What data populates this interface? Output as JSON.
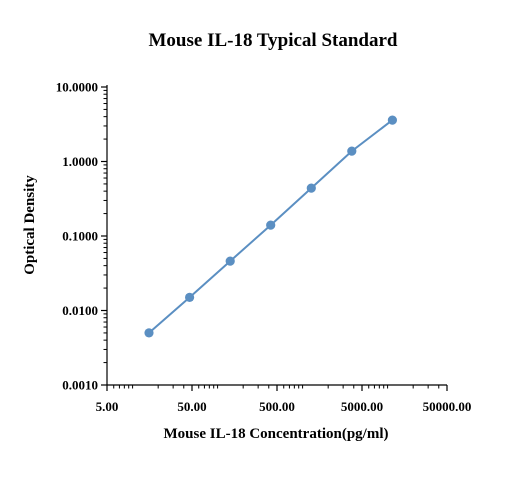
{
  "chart_data": {
    "type": "scatter",
    "title": "Mouse IL-18 Typical Standard",
    "xlabel": "Mouse IL-18 Concentration(pg/ml)",
    "ylabel": "Optical Density",
    "x_scale": "log",
    "y_scale": "log",
    "xlim": [
      5,
      50000
    ],
    "ylim": [
      0.001,
      10
    ],
    "x_ticks": [
      "5.00",
      "50.00",
      "500.00",
      "5000.00",
      "50000.00"
    ],
    "y_ticks": [
      "0.0010",
      "0.0100",
      "0.1000",
      "1.0000",
      "10.0000"
    ],
    "grid": false,
    "legend": "none",
    "series": [
      {
        "color": "#5b8fc2",
        "connected": true,
        "x": [
          15.6,
          46.9,
          140.6,
          421.9,
          1265.6,
          3796.9,
          11390.6
        ],
        "y": [
          0.005,
          0.015,
          0.046,
          0.14,
          0.44,
          1.38,
          3.6
        ]
      }
    ]
  }
}
